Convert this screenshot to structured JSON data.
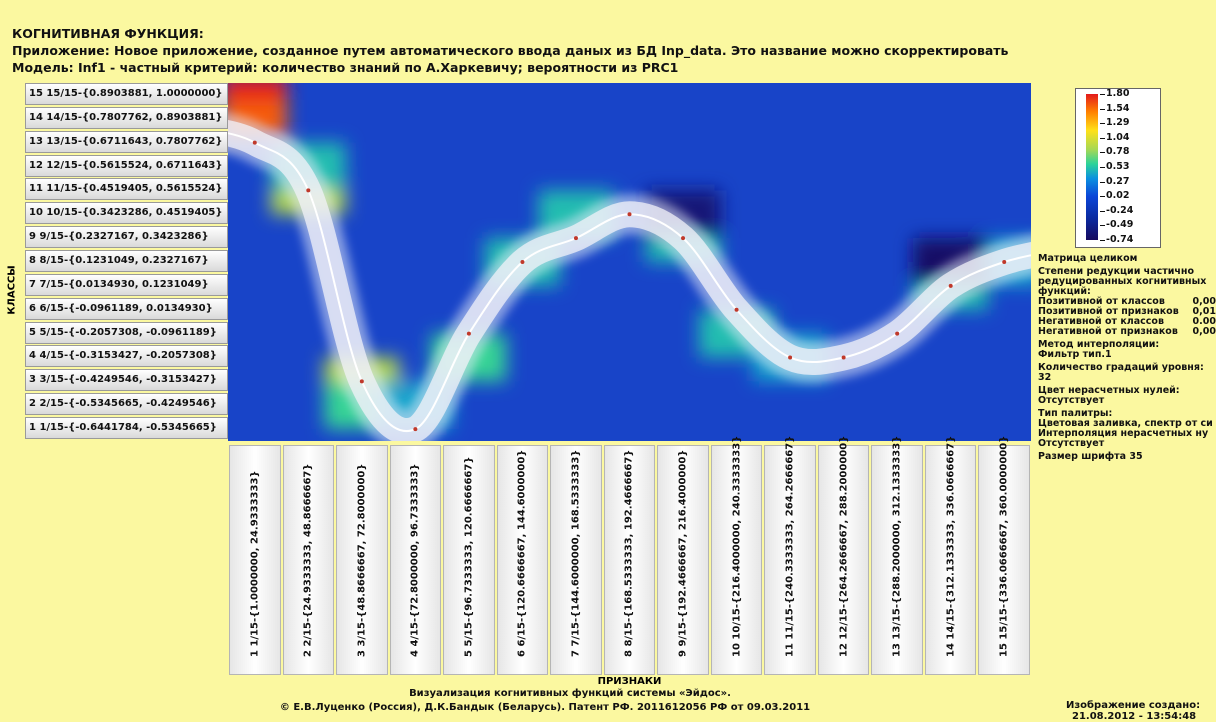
{
  "header": {
    "title": "КОГНИТИВНАЯ ФУНКЦИЯ:",
    "app": "Приложение: Новое приложение, созданное путем автоматического ввода даных из БД Inp_data. Это название можно скорректировать",
    "model": "Модель: Inf1 - частный критерий: количество знаний по А.Харкевичу; вероятности из PRC1"
  },
  "colors": {
    "background": "#fbf8a0",
    "plot_background": "#1844c8",
    "curve": "#ffffff"
  },
  "chart_data": {
    "type": "heatmap",
    "ylabel": "КЛАССЫ",
    "xlabel": "ПРИЗНАКИ",
    "rows": [
      "15 15/15-{0.8903881, 1.0000000}",
      "14 14/15-{0.7807762, 0.8903881}",
      "13 13/15-{0.6711643, 0.7807762}",
      "12 12/15-{0.5615524, 0.6711643}",
      "11 11/15-{0.4519405, 0.5615524}",
      "10 10/15-{0.3423286, 0.4519405}",
      "9 9/15-{0.2327167, 0.3423286}",
      "8 8/15-{0.1231049, 0.2327167}",
      "7 7/15-{0.0134930, 0.1231049}",
      "6 6/15-{-0.0961189, 0.0134930}",
      "5 5/15-{-0.2057308, -0.0961189}",
      "4 4/15-{-0.3153427, -0.2057308}",
      "3 3/15-{-0.4249546, -0.3153427}",
      "2 2/15-{-0.5345665, -0.4249546}",
      "1 1/15-{-0.6441784, -0.5345665}"
    ],
    "columns": [
      "1 1/15-{1.0000000, 24.9333333}",
      "2 2/15-{24.9333333, 48.8666667}",
      "3 3/15-{48.8666667, 72.8000000}",
      "4 4/15-{72.8000000, 96.7333333}",
      "5 5/15-{96.7333333, 120.6666667}",
      "6 6/15-{120.6666667, 144.6000000}",
      "7 7/15-{144.6000000, 168.5333333}",
      "8 8/15-{168.5333333, 192.4666667}",
      "9 9/15-{192.4666667, 216.4000000}",
      "10 10/15-{216.4000000, 240.3333333}",
      "11 11/15-{240.3333333, 264.2666667}",
      "12 12/15-{264.2666667, 288.2000000}",
      "13 13/15-{288.2000000, 312.1333333}",
      "14 14/15-{312.1333333, 336.0666667}",
      "15 15/15-{336.0666667, 360.0000000}"
    ],
    "cognitive_function_class": [
      13,
      11,
      3,
      1,
      5,
      8,
      9,
      10,
      9,
      6,
      4,
      4,
      5,
      7,
      8
    ],
    "hotspots": [
      {
        "col": 1,
        "row": 15,
        "value": 1.8
      },
      {
        "col": 1,
        "row": 14,
        "value": 1.6
      },
      {
        "col": 2,
        "row": 11,
        "value": 0.9
      },
      {
        "col": 2,
        "row": 12,
        "value": 0.5
      },
      {
        "col": 3,
        "row": 3,
        "value": 0.9
      },
      {
        "col": 3,
        "row": 2,
        "value": 0.6
      },
      {
        "col": 5,
        "row": 4,
        "value": 0.6
      },
      {
        "col": 4,
        "row": 2,
        "value": 0.4
      },
      {
        "col": 6,
        "row": 8,
        "value": 0.5
      },
      {
        "col": 7,
        "row": 10,
        "value": 0.5
      },
      {
        "col": 9,
        "row": 9,
        "value": 0.5
      },
      {
        "col": 10,
        "row": 5,
        "value": 0.5
      },
      {
        "col": 11,
        "row": 4,
        "value": 0.4
      },
      {
        "col": 14,
        "row": 7,
        "value": 0.5
      },
      {
        "col": 15,
        "row": 8,
        "value": 0.4
      },
      {
        "col": 9,
        "row": 10,
        "value": -0.6
      },
      {
        "col": 14,
        "row": 8,
        "value": -0.7
      }
    ],
    "legend": {
      "ticks": [
        "1.80",
        "1.54",
        "1.29",
        "1.04",
        "0.78",
        "0.53",
        "0.27",
        "0.02",
        "-0.24",
        "-0.49",
        "-0.74"
      ],
      "min": -0.74,
      "max": 1.8
    }
  },
  "side_panel": {
    "matrix": "Матрица целиком",
    "reduction_title": "Степени редукции частично редуцированных когнитивных функций:",
    "reductions": [
      {
        "label": "Позитивной от классов",
        "value": "0,00"
      },
      {
        "label": "Позитивной от признаков",
        "value": "0,01"
      },
      {
        "label": "Негативной от классов",
        "value": "0.00"
      },
      {
        "label": "Негативной от признаков",
        "value": "0,00"
      }
    ],
    "interp_method_label": "Метод интерполяции:",
    "interp_method_value": "Фильтр тип.1",
    "levels_label": "Количество градаций уровня:",
    "levels_value": "32",
    "zeros_color_label": "Цвет нерасчетных нулей:",
    "zeros_color_value": "Отсутствует",
    "palette_label": "Тип палитры:",
    "palette_value": "Цветовая заливка, спектр от си",
    "zeros_interp_label": "Интерполяция нерасчетных ну",
    "zeros_interp_value": "Отсутствует",
    "font_size": "Размер шрифта 35"
  },
  "footer": {
    "line1": "Визуализация когнитивных функций системы «Эйдос».",
    "line2": "© Е.В.Луценко (Россия), Д.К.Бандык (Беларусь). Патент РФ. 2011612056 РФ от 09.03.2011",
    "created_label": "Изображение создано:",
    "created_value": "21.08.2012 - 13:54:48"
  }
}
